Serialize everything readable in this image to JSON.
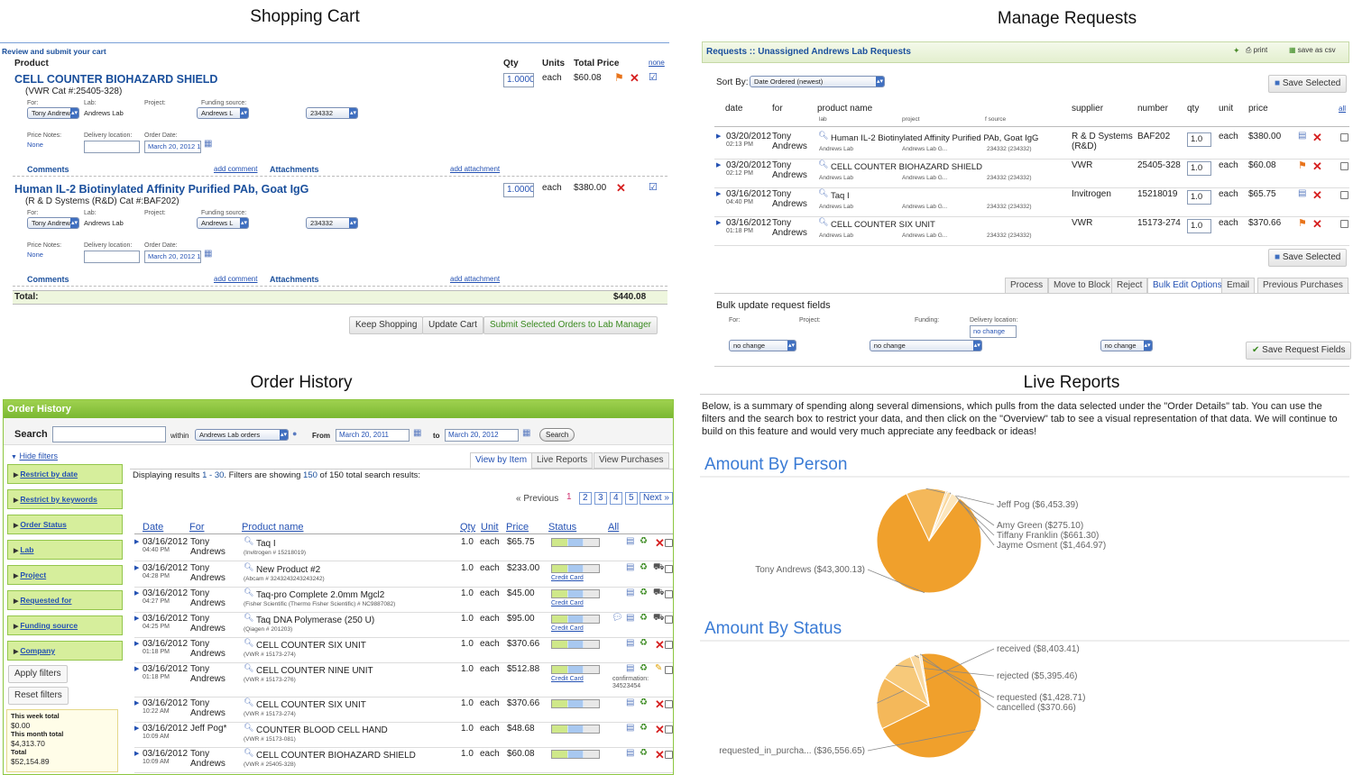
{
  "titles": {
    "cart": "Shopping Cart",
    "requests": "Manage Requests",
    "history": "Order History",
    "reports": "Live Reports"
  },
  "cart": {
    "header": "Review and submit your cart",
    "col_product": "Product",
    "col_qty": "Qty",
    "col_units": "Units",
    "col_total": "Total Price",
    "none_link": "none",
    "items": [
      {
        "name": "CELL COUNTER BIOHAZARD SHIELD",
        "cat": "(VWR Cat #:25405-328)",
        "qty": "1.0000",
        "unit": "each",
        "price": "$60.08",
        "for_label": "For:",
        "for_value": "Tony Andrew",
        "lab_label": "Lab:",
        "lab_value": "Andrews Lab",
        "project_label": "Project:",
        "project_value": "Andrews L",
        "funding_label": "Funding source:",
        "funding_value": "234332",
        "price_notes_label": "Price Notes:",
        "price_notes_value": "None",
        "delivery_label": "Delivery location:",
        "order_date_label": "Order Date:",
        "order_date_value": "March 20, 2012 1",
        "comments": "Comments",
        "add_comment": "add comment",
        "attachments": "Attachments",
        "add_attachment": "add attachment"
      },
      {
        "name": "Human IL-2 Biotinylated Affinity Purified PAb, Goat IgG",
        "cat": "(R & D Systems (R&D) Cat #:BAF202)",
        "qty": "1.0000",
        "unit": "each",
        "price": "$380.00",
        "for_label": "For:",
        "for_value": "Tony Andrew",
        "lab_label": "Lab:",
        "lab_value": "Andrews Lab",
        "project_label": "Project:",
        "project_value": "Andrews L",
        "funding_label": "Funding source:",
        "funding_value": "234332",
        "price_notes_label": "Price Notes:",
        "price_notes_value": "None",
        "delivery_label": "Delivery location:",
        "order_date_label": "Order Date:",
        "order_date_value": "March 20, 2012 1",
        "comments": "Comments",
        "add_comment": "add comment",
        "attachments": "Attachments",
        "add_attachment": "add attachment"
      }
    ],
    "total_label": "Total:",
    "total_value": "$440.08",
    "keep_shopping": "Keep Shopping",
    "update_cart": "Update Cart",
    "submit": "Submit Selected Orders to Lab Manager"
  },
  "requests": {
    "header": "Requests :: Unassigned Andrews Lab Requests",
    "print": "print",
    "save_csv": "save as csv",
    "sort_label": "Sort By:",
    "sort_value": "Date Ordered (newest)",
    "save_selected": "Save Selected",
    "cols": {
      "date": "date",
      "for": "for",
      "product": "product name",
      "lab": "lab",
      "project": "project",
      "fsource": "f source",
      "supplier": "supplier",
      "number": "number",
      "qty": "qty",
      "unit": "unit",
      "price": "price",
      "all": "all"
    },
    "rows": [
      {
        "date": "03/20/2012",
        "time": "02:13 PM",
        "for1": "Tony",
        "for2": "Andrews",
        "product": "Human IL-2 Biotinylated Affinity Purified PAb, Goat IgG",
        "lab": "Andrews Lab",
        "project": "Andrews Lab G...",
        "fs": "234332 (234332)",
        "supplier": "R & D Systems (R&D)",
        "number": "BAF202",
        "qty": "1.0",
        "unit": "each",
        "price": "$380.00",
        "flag": false
      },
      {
        "date": "03/20/2012",
        "time": "02:12 PM",
        "for1": "Tony",
        "for2": "Andrews",
        "product": "CELL COUNTER BIOHAZARD SHIELD",
        "lab": "Andrews Lab",
        "project": "Andrews Lab G...",
        "fs": "234332 (234332)",
        "supplier": "VWR",
        "number": "25405-328",
        "qty": "1.0",
        "unit": "each",
        "price": "$60.08",
        "flag": true
      },
      {
        "date": "03/16/2012",
        "time": "04:40 PM",
        "for1": "Tony",
        "for2": "Andrews",
        "product": "Taq I",
        "lab": "Andrews Lab",
        "project": "Andrews Lab G...",
        "fs": "234332 (234332)",
        "supplier": "Invitrogen",
        "number": "15218019",
        "qty": "1.0",
        "unit": "each",
        "price": "$65.75",
        "flag": false
      },
      {
        "date": "03/16/2012",
        "time": "01:18 PM",
        "for1": "Tony",
        "for2": "Andrews",
        "product": "CELL COUNTER SIX UNIT",
        "lab": "Andrews Lab",
        "project": "Andrews Lab G...",
        "fs": "234332 (234332)",
        "supplier": "VWR",
        "number": "15173-274",
        "qty": "1.0",
        "unit": "each",
        "price": "$370.66",
        "flag": true
      }
    ],
    "tabs": [
      "Process",
      "Move to Block",
      "Reject",
      "Bulk Edit Options",
      "Email",
      "Previous Purchases"
    ],
    "bulk_title": "Bulk update request fields",
    "bulk_for_label": "For:",
    "bulk_project_label": "Project:",
    "bulk_funding_label": "Funding:",
    "bulk_delivery_label": "Delivery location:",
    "no_change": "no change",
    "save_request_fields": "Save Request Fields"
  },
  "history": {
    "header": "Order History",
    "search_label": "Search",
    "within": "within",
    "within_value": "Andrews Lab orders",
    "from_label": "From",
    "from_value": "March 20, 2011",
    "to_label": "to",
    "to_value": "March 20, 2012",
    "search_btn": "Search",
    "hide_filters": "Hide filters",
    "filters": [
      "Restrict by date",
      "Restrict by keywords",
      "Order Status",
      "Lab",
      "Project",
      "Requested for",
      "Funding source",
      "Company"
    ],
    "apply_filters": "Apply filters",
    "reset_filters": "Reset filters",
    "week_label": "This week total",
    "week_value": "$0.00",
    "month_label": "This month total",
    "month_value": "$4,313.70",
    "total_label": "Total",
    "total_value": "$52,154.89",
    "tabs": [
      "View by Item",
      "Live Reports",
      "View Purchases"
    ],
    "results_pre": "Displaying results ",
    "results_range": "1 - 30",
    "results_mid": ". Filters are showing ",
    "results_count": "150",
    "results_post": " of 150 total search results:",
    "pager": {
      "prev": "« Previous",
      "pages": [
        "1",
        "2",
        "3",
        "4",
        "5"
      ],
      "next": "Next »"
    },
    "cols": {
      "date": "Date",
      "for": "For",
      "product": "Product name",
      "qty": "Qty",
      "unit": "Unit",
      "price": "Price",
      "status": "Status",
      "all": "All"
    },
    "credit_card": "Credit Card",
    "confirmation": "confirmation:",
    "confirmation_no": "34523454",
    "rows": [
      {
        "date": "03/16/2012",
        "time": "04:40 PM",
        "for1": "Tony",
        "for2": "Andrews",
        "product": "Taq I",
        "sub": "(Invitrogen # 15218019)",
        "qty": "1.0",
        "unit": "each",
        "price": "$65.75",
        "cc": false,
        "conf": false
      },
      {
        "date": "03/16/2012",
        "time": "04:28 PM",
        "for1": "Tony",
        "for2": "Andrews",
        "product": "New Product #2",
        "sub": "(Abcam # 3243243243243242)",
        "qty": "1.0",
        "unit": "each",
        "price": "$233.00",
        "cc": true,
        "conf": false
      },
      {
        "date": "03/16/2012",
        "time": "04:27 PM",
        "for1": "Tony",
        "for2": "Andrews",
        "product": "Taq-pro Complete 2.0mm Mgcl2",
        "sub": "(Fisher Scientific (Thermo Fisher Scientific) # NC9887082)",
        "qty": "1.0",
        "unit": "each",
        "price": "$45.00",
        "cc": true,
        "conf": false
      },
      {
        "date": "03/16/2012",
        "time": "04:25 PM",
        "for1": "Tony",
        "for2": "Andrews",
        "product": "Taq DNA Polymerase (250 U)",
        "sub": "(Qiagen # 201203)",
        "qty": "1.0",
        "unit": "each",
        "price": "$95.00",
        "cc": true,
        "conf": false
      },
      {
        "date": "03/16/2012",
        "time": "01:18 PM",
        "for1": "Tony",
        "for2": "Andrews",
        "product": "CELL COUNTER SIX UNIT",
        "sub": "(VWR # 15173-274)",
        "qty": "1.0",
        "unit": "each",
        "price": "$370.66",
        "cc": false,
        "conf": false
      },
      {
        "date": "03/16/2012",
        "time": "01:18 PM",
        "for1": "Tony",
        "for2": "Andrews",
        "product": "CELL COUNTER NINE UNIT",
        "sub": "(VWR # 15173-276)",
        "qty": "1.0",
        "unit": "each",
        "price": "$512.88",
        "cc": true,
        "conf": true
      },
      {
        "date": "03/16/2012",
        "time": "10:22 AM",
        "for1": "Tony",
        "for2": "Andrews",
        "product": "CELL COUNTER SIX UNIT",
        "sub": "(VWR # 15173-274)",
        "qty": "1.0",
        "unit": "each",
        "price": "$370.66",
        "cc": false,
        "conf": false
      },
      {
        "date": "03/16/2012",
        "time": "10:09 AM",
        "for1": "Jeff Pog*",
        "for2": "",
        "product": "COUNTER BLOOD CELL HAND",
        "sub": "(VWR # 15173-081)",
        "qty": "1.0",
        "unit": "each",
        "price": "$48.68",
        "cc": false,
        "conf": false
      },
      {
        "date": "03/16/2012",
        "time": "10:09 AM",
        "for1": "Tony",
        "for2": "Andrews",
        "product": "CELL COUNTER BIOHAZARD SHIELD",
        "sub": "(VWR # 25405-328)",
        "qty": "1.0",
        "unit": "each",
        "price": "$60.08",
        "cc": false,
        "conf": false
      }
    ]
  },
  "reports": {
    "intro": "Below, is a summary of spending along several dimensions, which pulls from the data selected under the \"Order Details\" tab. You can use the filters and the search box to restrict your data, and then click on the \"Overview\" tab to see a visual representation of that data. We will continue to build on this feature and would very much appreciate any feedback or ideas!",
    "colors": {
      "pie": "#f0a02c",
      "heading": "#3a7bd5"
    }
  },
  "chart_data": [
    {
      "type": "pie",
      "title": "Amount By Person",
      "labels": [
        "Tony Andrews ($43,300.13)",
        "Jeff Pog ($6,453.39)",
        "Amy Green ($275.10)",
        "Tiffany Franklin ($661.30)",
        "Jayme Osment ($1,464.97)"
      ],
      "values": [
        43300.13,
        6453.39,
        275.1,
        661.3,
        1464.97
      ]
    },
    {
      "type": "pie",
      "title": "Amount By Status",
      "labels": [
        "requested_in_purcha... ($36,556.65)",
        "received ($8,403.41)",
        "rejected ($5,395.46)",
        "requested ($1,428.71)",
        "cancelled ($370.66)"
      ],
      "values": [
        36556.65,
        8403.41,
        5395.46,
        1428.71,
        370.66
      ]
    }
  ]
}
